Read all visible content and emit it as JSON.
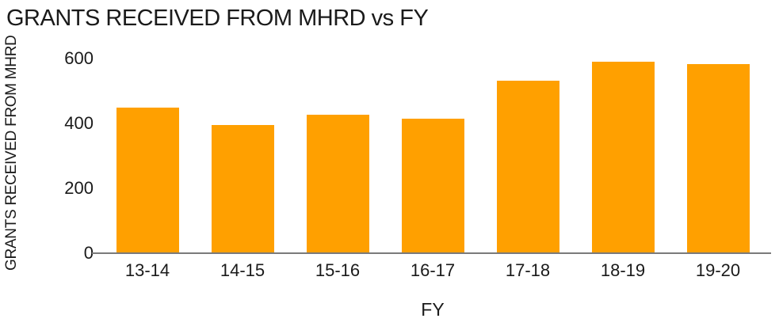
{
  "title": "GRANTS RECEIVED FROM MHRD vs FY",
  "chart_data": {
    "type": "bar",
    "title": "GRANTS RECEIVED FROM MHRD vs FY",
    "categories": [
      "13-14",
      "14-15",
      "15-16",
      "16-17",
      "17-18",
      "18-19",
      "19-20"
    ],
    "values": [
      450,
      395,
      428,
      415,
      533,
      590,
      584
    ],
    "xlabel": "FY",
    "ylabel": "GRANTS RECEIVED FROM MHRD",
    "yticks": [
      0,
      200,
      400,
      600
    ],
    "ylim": [
      0,
      630
    ],
    "grid": false,
    "legend": false,
    "bar_color": "#ffa000",
    "axis_line_color": "#7a7a7a",
    "text_color": "#1a1a1a",
    "background_color": "#ffffff"
  }
}
